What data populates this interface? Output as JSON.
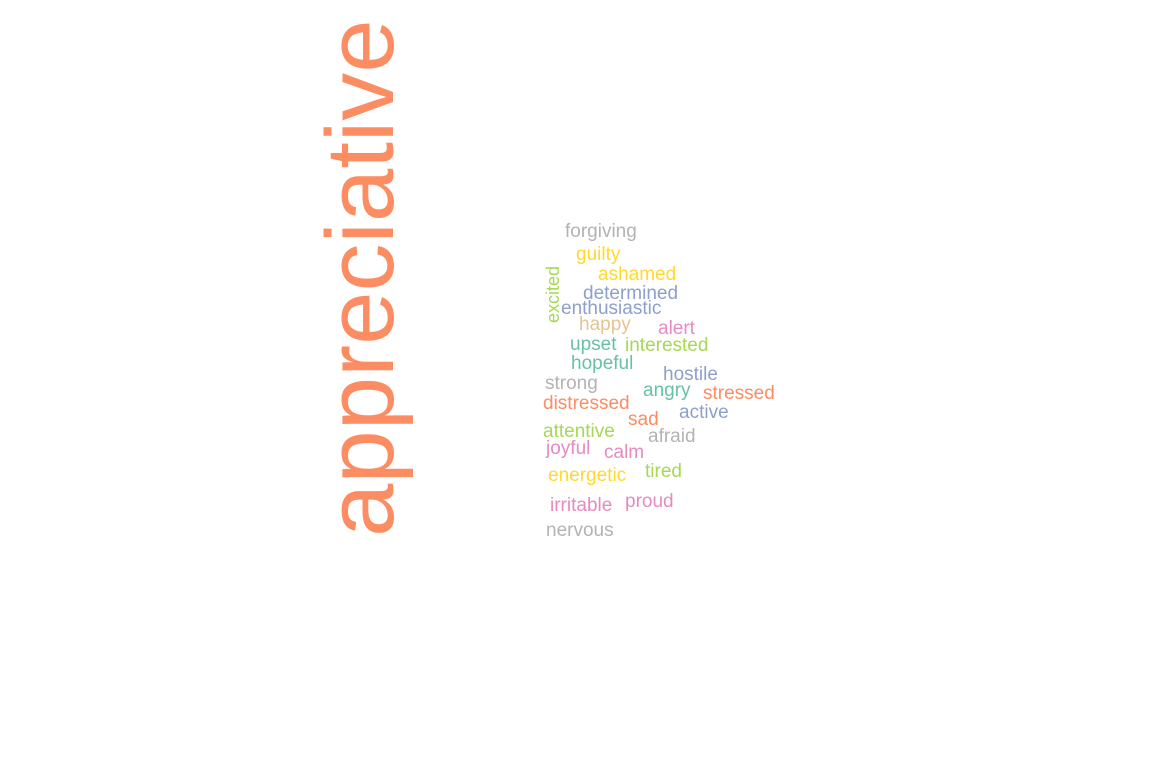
{
  "words": [
    {
      "id": "appreciative",
      "text": "appreciative",
      "color": "#fc8d62"
    },
    {
      "id": "forgiving",
      "text": "forgiving",
      "color": "#b3b3b3"
    },
    {
      "id": "guilty",
      "text": "guilty",
      "color": "#ffd92f"
    },
    {
      "id": "ashamed",
      "text": "ashamed",
      "color": "#ffd92f"
    },
    {
      "id": "excited",
      "text": "excited",
      "color": "#a6d854"
    },
    {
      "id": "determined",
      "text": "determined",
      "color": "#8da0cb"
    },
    {
      "id": "enthusiastic",
      "text": "enthusiastic",
      "color": "#8da0cb"
    },
    {
      "id": "happy",
      "text": "happy",
      "color": "#e5c494"
    },
    {
      "id": "alert",
      "text": "alert",
      "color": "#e78ac3"
    },
    {
      "id": "upset",
      "text": "upset",
      "color": "#66c2a5"
    },
    {
      "id": "interested",
      "text": "interested",
      "color": "#a6d854"
    },
    {
      "id": "hopeful",
      "text": "hopeful",
      "color": "#66c2a5"
    },
    {
      "id": "hostile",
      "text": "hostile",
      "color": "#8da0cb"
    },
    {
      "id": "strong",
      "text": "strong",
      "color": "#b3b3b3"
    },
    {
      "id": "angry",
      "text": "angry",
      "color": "#66c2a5"
    },
    {
      "id": "stressed",
      "text": "stressed",
      "color": "#fc8d62"
    },
    {
      "id": "distressed",
      "text": "distressed",
      "color": "#fc8d62"
    },
    {
      "id": "active",
      "text": "active",
      "color": "#8da0cb"
    },
    {
      "id": "sad",
      "text": "sad",
      "color": "#fc8d62"
    },
    {
      "id": "attentive",
      "text": "attentive",
      "color": "#a6d854"
    },
    {
      "id": "afraid",
      "text": "afraid",
      "color": "#b3b3b3"
    },
    {
      "id": "joyful",
      "text": "joyful",
      "color": "#e78ac3"
    },
    {
      "id": "calm",
      "text": "calm",
      "color": "#e78ac3"
    },
    {
      "id": "energetic",
      "text": "energetic",
      "color": "#ffd92f"
    },
    {
      "id": "tired",
      "text": "tired",
      "color": "#a6d854"
    },
    {
      "id": "irritable",
      "text": "irritable",
      "color": "#e78ac3"
    },
    {
      "id": "proud",
      "text": "proud",
      "color": "#e78ac3"
    },
    {
      "id": "nervous",
      "text": "nervous",
      "color": "#b3b3b3"
    }
  ]
}
